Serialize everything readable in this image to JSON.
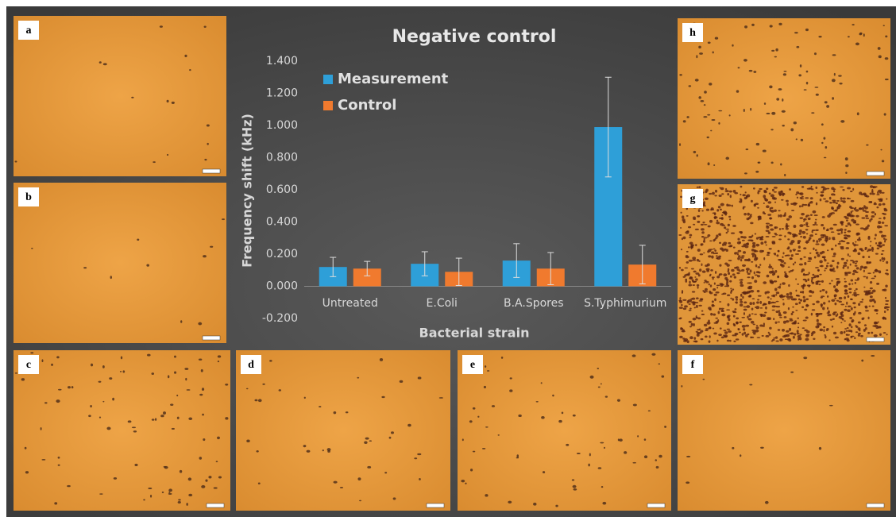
{
  "chart_data": {
    "type": "bar",
    "title": "Negative control",
    "x_label": "Bacterial strain",
    "y_label": "Frequency shift (kHz)",
    "categories": [
      "Untreated",
      "E.Coli",
      "B.A.Spores",
      "S.Typhimurium"
    ],
    "series": [
      {
        "name": "Measurement",
        "color": "#2e9fd8",
        "values": [
          0.12,
          0.14,
          0.16,
          0.99
        ],
        "errors": [
          0.06,
          0.075,
          0.105,
          0.31
        ]
      },
      {
        "name": "Control",
        "color": "#f07a2e",
        "values": [
          0.11,
          0.09,
          0.11,
          0.135
        ],
        "errors": [
          0.045,
          0.085,
          0.1,
          0.12
        ]
      }
    ],
    "ylim": [
      -0.2,
      1.4
    ],
    "yticks": [
      {
        "value": -0.2,
        "label": "-0.200"
      },
      {
        "value": 0,
        "label": "0.000"
      },
      {
        "value": 0.2,
        "label": "0.200"
      },
      {
        "value": 0.4,
        "label": "0.400"
      },
      {
        "value": 0.6,
        "label": "0.600"
      },
      {
        "value": 0.8,
        "label": "0.800"
      },
      {
        "value": 1,
        "label": "1.000"
      },
      {
        "value": 1.2,
        "label": "1.200"
      },
      {
        "value": 1.4,
        "label": "1.400"
      }
    ],
    "legend": "upper left",
    "grid": false
  },
  "panels": [
    {
      "label": "a"
    },
    {
      "label": "b"
    },
    {
      "label": "c"
    },
    {
      "label": "d"
    },
    {
      "label": "e"
    },
    {
      "label": "f"
    },
    {
      "label": "g"
    },
    {
      "label": "h"
    }
  ]
}
